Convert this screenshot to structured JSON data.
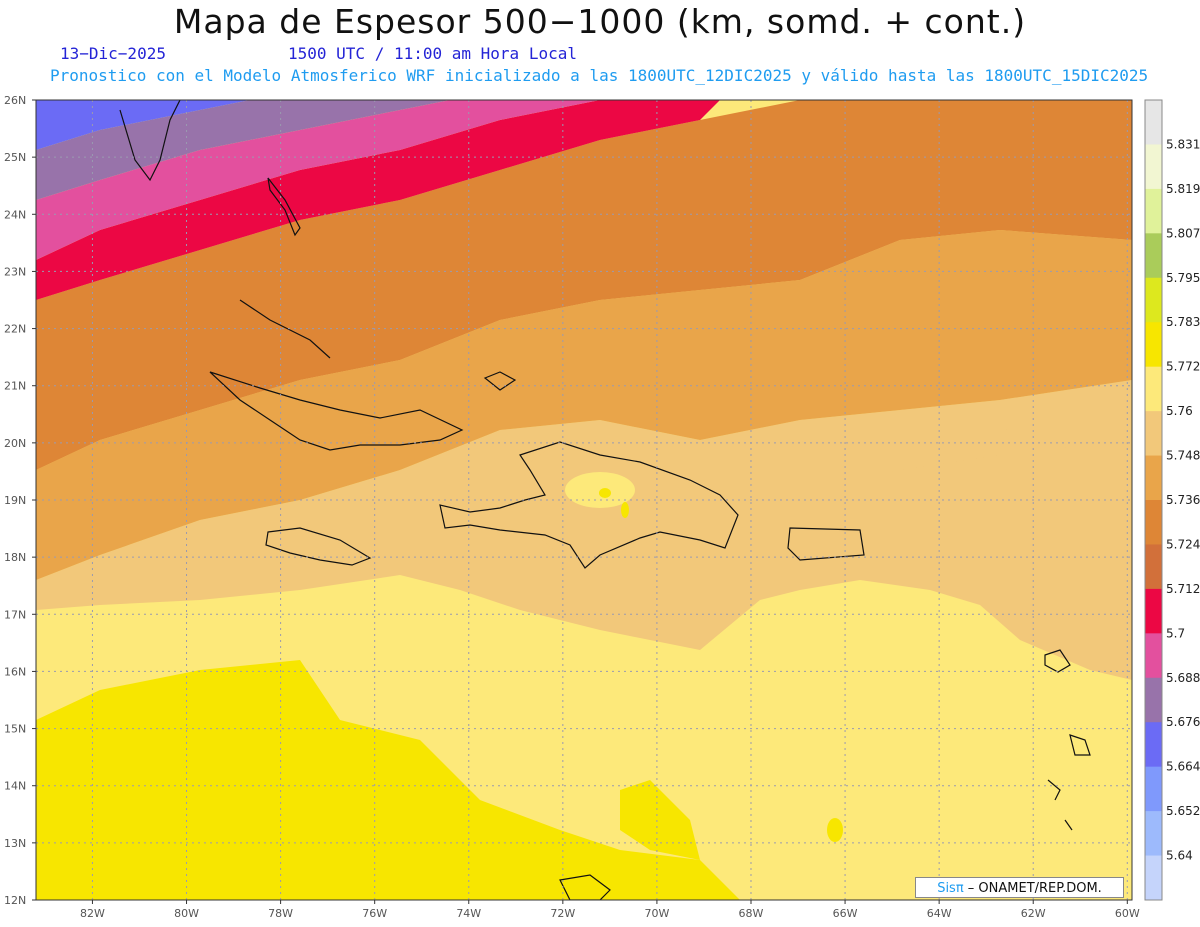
{
  "header": {
    "title": "Mapa de Espesor 500−1000 (km, somd. + cont.)",
    "date": "13−Dic−2025",
    "time": "1500 UTC / 11:00 am Hora Local",
    "model_line": "Pronostico con el Modelo Atmosferico WRF inicializado a las 1800UTC_12DIC2025 y válido hasta las  1800UTC_15DIC2025"
  },
  "map": {
    "lat_labels": [
      "26N",
      "25N",
      "24N",
      "23N",
      "22N",
      "21N",
      "20N",
      "19N",
      "18N",
      "17N",
      "16N",
      "15N",
      "14N",
      "13N",
      "12N"
    ],
    "lon_labels": [
      "82W",
      "80W",
      "78W",
      "76W",
      "74W",
      "72W",
      "70W",
      "68W",
      "66W",
      "64W",
      "62W",
      "60W"
    ],
    "lat_range": [
      12,
      26
    ],
    "lon_range": [
      -83.2,
      -59.9
    ],
    "grid": true
  },
  "colorbar": {
    "labels": [
      "5.831",
      "5.819",
      "5.807",
      "5.795",
      "5.783",
      "5.772",
      "5.76",
      "5.748",
      "5.736",
      "5.724",
      "5.712",
      "5.7",
      "5.688",
      "5.676",
      "5.664",
      "5.652",
      "5.64"
    ],
    "colors": [
      "#e6e6e6",
      "#f2f6d2",
      "#e0f29a",
      "#aacc5a",
      "#dde81e",
      "#f7e600",
      "#fde97a",
      "#f2c87a",
      "#e9a54a",
      "#de8636",
      "#d2703a",
      "#ec0744",
      "#e3509e",
      "#9873aa",
      "#6b6bf5",
      "#7f99fc",
      "#9dbafc",
      "#c5d4fb"
    ]
  },
  "credit": {
    "brand": "Sisπ",
    "org": " – ONAMET/REP.DOM."
  }
}
